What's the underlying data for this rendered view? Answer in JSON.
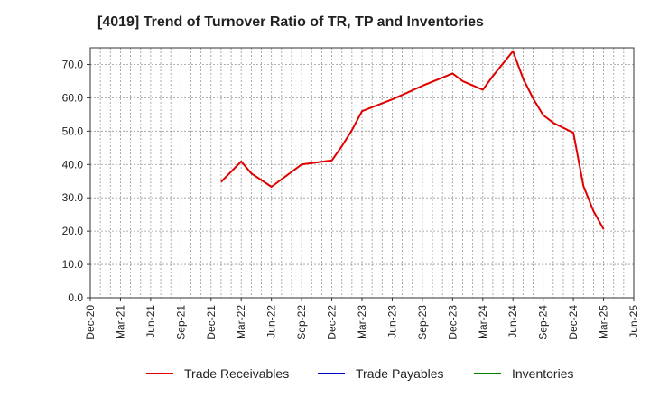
{
  "chart_data": {
    "type": "line",
    "title": "[4019]  Trend of Turnover Ratio of TR, TP and Inventories",
    "xlabel": "",
    "ylabel": "",
    "ylim": [
      0,
      75
    ],
    "y_ticks": [
      "0.0",
      "10.0",
      "20.0",
      "30.0",
      "40.0",
      "50.0",
      "60.0",
      "70.0"
    ],
    "x_ticks": [
      "Dec-20",
      "Mar-21",
      "Jun-21",
      "Sep-21",
      "Dec-21",
      "Mar-22",
      "Jun-22",
      "Sep-22",
      "Dec-22",
      "Mar-23",
      "Jun-23",
      "Sep-23",
      "Dec-23",
      "Mar-24",
      "Jun-24",
      "Sep-24",
      "Dec-24",
      "Mar-25",
      "Jun-25"
    ],
    "grid": true,
    "legend_position": "bottom",
    "series": [
      {
        "name": "Trade Receivables",
        "color": "#e00000",
        "points": [
          [
            "Jan-22",
            34.8
          ],
          [
            "Mar-22",
            40.9
          ],
          [
            "Apr-22",
            37.3
          ],
          [
            "Jun-22",
            33.3
          ],
          [
            "Sep-22",
            40.0
          ],
          [
            "Dec-22",
            41.2
          ],
          [
            "Jan-23",
            45.5
          ],
          [
            "Feb-23",
            50.3
          ],
          [
            "Mar-23",
            56.0
          ],
          [
            "Jun-23",
            59.5
          ],
          [
            "Sep-23",
            63.6
          ],
          [
            "Dec-23",
            67.3
          ],
          [
            "Jan-24",
            65.0
          ],
          [
            "Mar-24",
            62.4
          ],
          [
            "Apr-24",
            66.5
          ],
          [
            "Jun-24",
            74.0
          ],
          [
            "Jul-24",
            65.8
          ],
          [
            "Aug-24",
            59.8
          ],
          [
            "Sep-24",
            54.8
          ],
          [
            "Oct-24",
            52.5
          ],
          [
            "Dec-24",
            49.5
          ],
          [
            "Jan-25",
            33.5
          ],
          [
            "Feb-25",
            26.0
          ],
          [
            "Mar-25",
            20.6
          ]
        ]
      },
      {
        "name": "Trade Payables",
        "color": "#0000cc",
        "points": []
      },
      {
        "name": "Inventories",
        "color": "#008000",
        "points": []
      }
    ]
  }
}
